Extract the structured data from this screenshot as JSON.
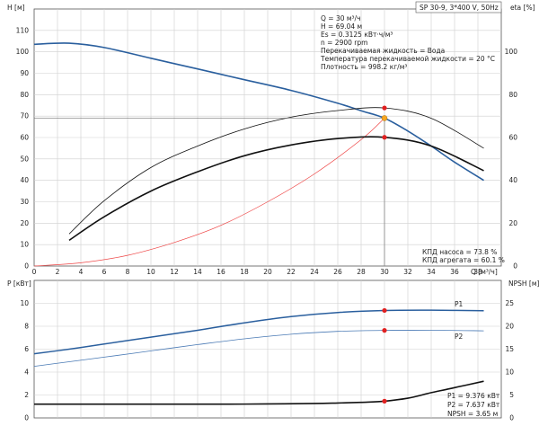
{
  "header": {
    "title": "SP 30-9, 3*400 V, 50Hz"
  },
  "info": {
    "lines": [
      "Q = 30 м³/ч",
      "H = 69.04 м",
      "Es = 0.3125 кВт·ч/м³",
      "n = 2900 rpm",
      "Перекачиваемая жидкость = Вода",
      "Температура перекачиваемой жидкости = 20 °C",
      "Плотность = 998.2 кг/м³"
    ]
  },
  "efficiency_notes": {
    "pump": "КПД насоса = 73.8 %",
    "unit": "КПД агрегата = 60.1 %"
  },
  "power_notes": {
    "p1": "P1 = 9.376 кВт",
    "p2": "P2 = 7.637 кВт",
    "npsh": "NPSH = 3.65 м"
  },
  "colors": {
    "head": "#2a5f9e",
    "system": "#ee4444",
    "marker": "#e02020",
    "duty_point": "#f5a623",
    "black": "#111111",
    "p2": "#4a7ab5"
  },
  "chart_data": [
    {
      "type": "line",
      "title": "",
      "xlabel": "Q [м³/ч]",
      "xlim": [
        0,
        40
      ],
      "x_ticks": [
        0,
        2,
        4,
        6,
        8,
        10,
        12,
        14,
        16,
        18,
        20,
        22,
        24,
        26,
        28,
        30,
        32,
        34,
        36,
        38
      ],
      "ylabel": "H [м]",
      "ylim": [
        0,
        120
      ],
      "y_ticks": [
        0,
        10,
        20,
        30,
        40,
        50,
        60,
        70,
        80,
        90,
        100,
        110
      ],
      "y2label": "eta [%]",
      "y2lim": [
        0,
        120
      ],
      "y2_ticks": [
        0,
        20,
        40,
        60,
        80,
        100
      ],
      "grid": true,
      "series": [
        {
          "key": "head",
          "axis": "left",
          "x": [
            0,
            3,
            6,
            10,
            14,
            18,
            22,
            26,
            28,
            30,
            32,
            34,
            36,
            38.5
          ],
          "y": [
            103.5,
            104,
            102,
            97,
            92,
            87,
            82,
            76,
            72.5,
            69.04,
            63,
            56,
            48.5,
            40
          ]
        },
        {
          "key": "system",
          "axis": "left",
          "x": [
            0,
            4,
            8,
            12,
            16,
            20,
            24,
            28,
            30
          ],
          "y": [
            0,
            1.5,
            5,
            11,
            19,
            30,
            43,
            59,
            69.04
          ]
        },
        {
          "key": "eta_pump",
          "axis": "right",
          "x": [
            3,
            6,
            10,
            14,
            18,
            22,
            26,
            30,
            34,
            38.5
          ],
          "y": [
            15,
            30.5,
            46,
            56,
            64,
            69.5,
            72.6,
            73.8,
            69,
            55
          ]
        },
        {
          "key": "eta_unit",
          "axis": "right",
          "x": [
            3,
            6,
            10,
            14,
            18,
            22,
            26,
            30,
            34,
            38.5
          ],
          "y": [
            12,
            23,
            35,
            44,
            51.5,
            56.5,
            59.5,
            60.1,
            56,
            44.5
          ]
        }
      ],
      "duty_point": {
        "x": 30,
        "y": 69.04
      },
      "eta_markers": [
        {
          "x": 30,
          "y": 73.8
        },
        {
          "x": 30,
          "y": 60.1
        }
      ]
    },
    {
      "type": "line",
      "title": "",
      "ylabel": "P [кВт]",
      "ylim": [
        0,
        12
      ],
      "y_ticks": [
        0,
        2,
        4,
        6,
        8,
        10
      ],
      "y2label": "NPSH [м]",
      "y2lim": [
        0,
        30
      ],
      "y2_ticks": [
        0,
        5,
        10,
        15,
        20,
        25
      ],
      "xlim": [
        0,
        40
      ],
      "grid": true,
      "series": [
        {
          "key": "p1",
          "name": "P1",
          "axis": "left",
          "x": [
            0,
            3,
            6,
            10,
            14,
            18,
            22,
            26,
            30,
            34,
            38.5
          ],
          "y": [
            5.6,
            6.0,
            6.45,
            7.05,
            7.65,
            8.3,
            8.85,
            9.2,
            9.376,
            9.4,
            9.35
          ]
        },
        {
          "key": "p2",
          "name": "P2",
          "axis": "left",
          "x": [
            0,
            3,
            6,
            10,
            14,
            18,
            22,
            26,
            30,
            34,
            38.5
          ],
          "y": [
            4.5,
            4.9,
            5.3,
            5.85,
            6.4,
            6.9,
            7.3,
            7.55,
            7.637,
            7.65,
            7.6
          ]
        },
        {
          "key": "npsh",
          "axis": "right",
          "x": [
            0,
            4,
            8,
            12,
            16,
            20,
            24,
            26,
            28,
            30,
            32,
            34,
            36,
            38.5
          ],
          "y": [
            3.0,
            3.0,
            3.0,
            3.0,
            3.0,
            3.05,
            3.15,
            3.25,
            3.4,
            3.65,
            4.3,
            5.5,
            6.6,
            8.0
          ]
        }
      ],
      "markers": [
        {
          "x": 30,
          "y": 9.376
        },
        {
          "x": 30,
          "y": 7.637
        }
      ]
    }
  ]
}
